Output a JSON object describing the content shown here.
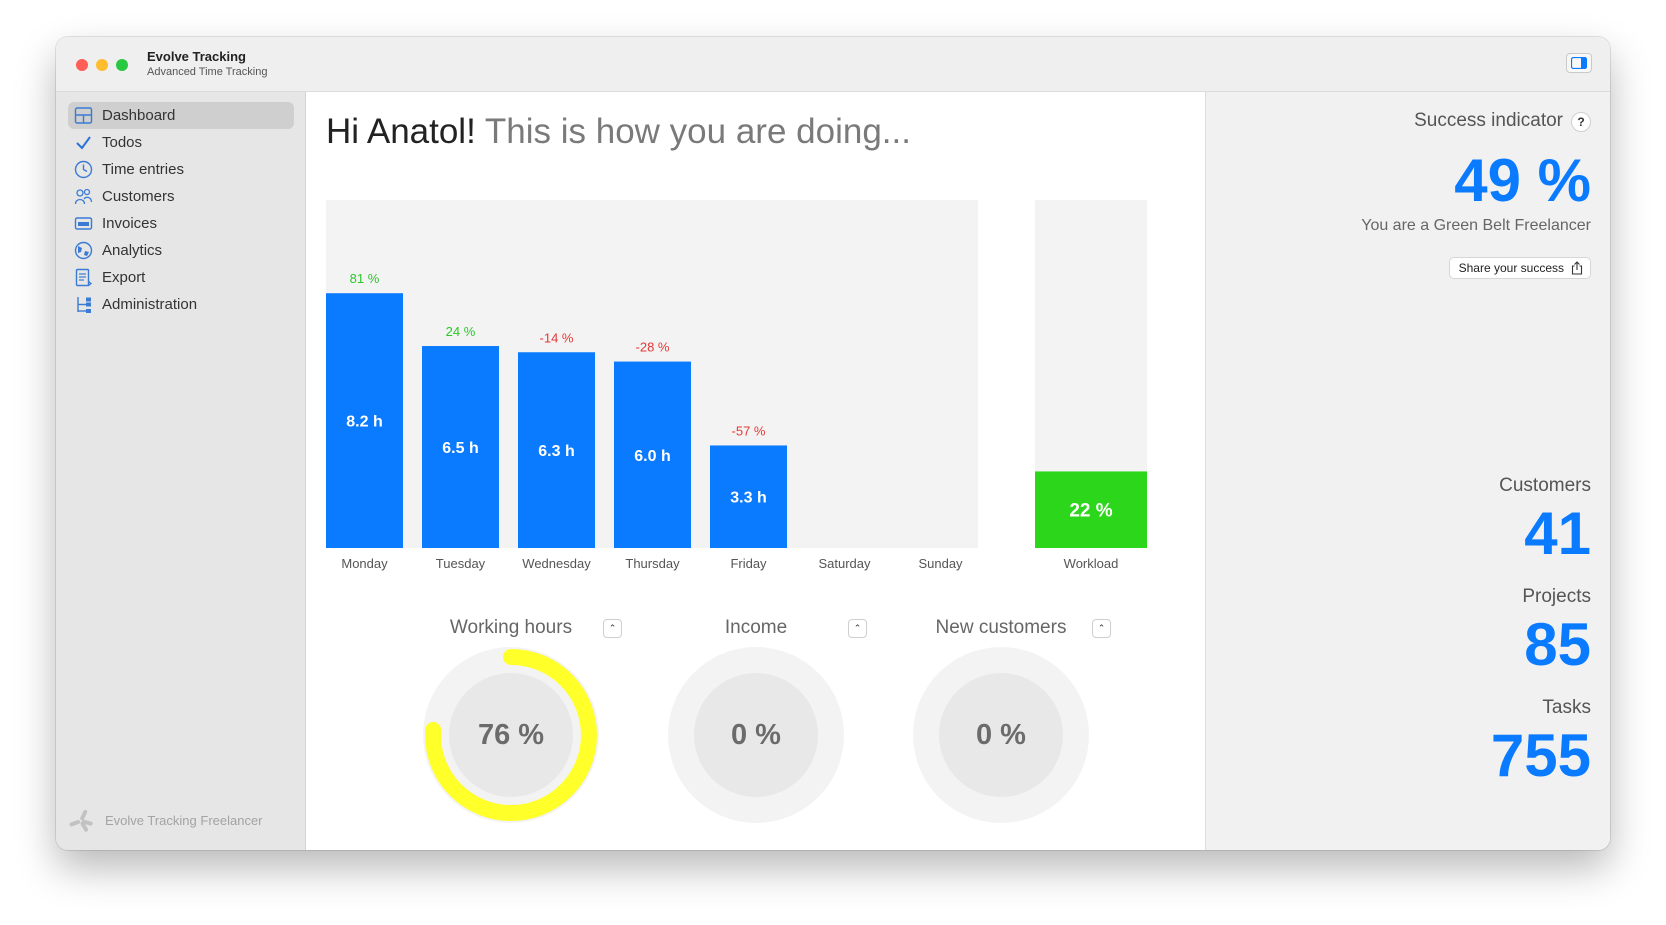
{
  "window": {
    "title": "Evolve Tracking",
    "subtitle": "Advanced Time Tracking"
  },
  "sidebar": {
    "items": [
      {
        "label": "Dashboard",
        "icon": "dashboard-icon",
        "active": true
      },
      {
        "label": "Todos",
        "icon": "checkmark-icon",
        "active": false
      },
      {
        "label": "Time entries",
        "icon": "clock-icon",
        "active": false
      },
      {
        "label": "Customers",
        "icon": "people-icon",
        "active": false
      },
      {
        "label": "Invoices",
        "icon": "invoice-icon",
        "active": false
      },
      {
        "label": "Analytics",
        "icon": "globe-icon",
        "active": false
      },
      {
        "label": "Export",
        "icon": "export-document-icon",
        "active": false
      },
      {
        "label": "Administration",
        "icon": "hierarchy-icon",
        "active": false
      }
    ],
    "footer_label": "Evolve Tracking Freelancer"
  },
  "main": {
    "greeting_name": "Hi Anatol!",
    "greeting_rest": " This is how you are doing..."
  },
  "chart_data": {
    "type": "bar",
    "categories": [
      "Monday",
      "Tuesday",
      "Wednesday",
      "Thursday",
      "Friday",
      "Saturday",
      "Sunday"
    ],
    "values": [
      8.2,
      6.5,
      6.3,
      6.0,
      3.3,
      null,
      null
    ],
    "value_labels": [
      "8.2 h",
      "6.5 h",
      "6.3 h",
      "6.0 h",
      "3.3 h",
      "",
      ""
    ],
    "change_labels": [
      "81 %",
      "24 %",
      "-14 %",
      "-28 %",
      "-57 %",
      "",
      ""
    ],
    "ylim": [
      0,
      11.2
    ],
    "bar_color": "#0a7aff",
    "positive_color": "#2bc72b",
    "negative_color": "#e53935",
    "workload": {
      "label": "Workload",
      "value": 22,
      "value_label": "22 %",
      "color": "#2bd61b"
    }
  },
  "gauges": [
    {
      "title": "Working hours",
      "value": 76,
      "value_label": "76 %",
      "color": "#ffff2a"
    },
    {
      "title": "Income",
      "value": 0,
      "value_label": "0 %",
      "color": "#ffff2a"
    },
    {
      "title": "New customers",
      "value": 0,
      "value_label": "0 %",
      "color": "#ffff2a"
    }
  ],
  "right_panel": {
    "success_label": "Success indicator",
    "help": "?",
    "success_value": "49 %",
    "belt_text": "You are a Green Belt Freelancer",
    "share_label": "Share your success",
    "customers_label": "Customers",
    "customers_value": "41",
    "projects_label": "Projects",
    "projects_value": "85",
    "tasks_label": "Tasks",
    "tasks_value": "755",
    "accent_color": "#0a7aff"
  }
}
